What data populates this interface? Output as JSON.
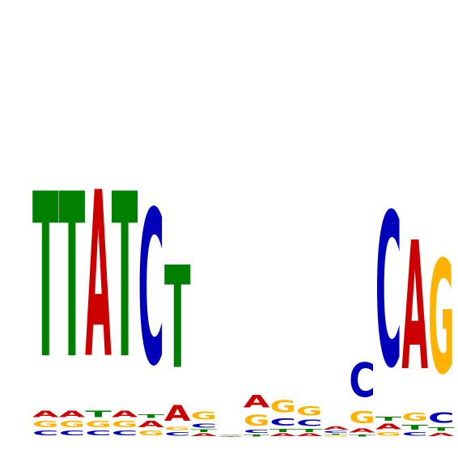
{
  "colors": {
    "A": "#cc0000",
    "C": "#0000bb",
    "G": "#ffb300",
    "T": "#008000"
  },
  "logo": {
    "positions": [
      [
        [
          "C",
          0.08
        ],
        [
          "G",
          0.1
        ],
        [
          "A",
          0.1
        ],
        [
          "T",
          2.7
        ]
      ],
      [
        [
          "C",
          0.08
        ],
        [
          "G",
          0.1
        ],
        [
          "A",
          0.1
        ],
        [
          "T",
          2.7
        ]
      ],
      [
        [
          "C",
          0.08
        ],
        [
          "G",
          0.1
        ],
        [
          "T",
          0.1
        ],
        [
          "A",
          2.72
        ]
      ],
      [
        [
          "C",
          0.08
        ],
        [
          "G",
          0.1
        ],
        [
          "A",
          0.1
        ],
        [
          "T",
          2.7
        ]
      ],
      [
        [
          "G",
          0.08
        ],
        [
          "A",
          0.1
        ],
        [
          "T",
          0.06
        ],
        [
          "C",
          2.53
        ]
      ],
      [
        [
          "C",
          0.06
        ],
        [
          "G",
          0.05
        ],
        [
          "A",
          0.26
        ],
        [
          "T",
          1.68
        ]
      ],
      [
        [
          "A",
          0.04
        ],
        [
          "T",
          0.04
        ],
        [
          "C",
          0.07
        ],
        [
          "G",
          0.13
        ]
      ],
      [
        [
          "C",
          0.005
        ],
        [
          "T",
          0.005
        ],
        [
          "G",
          0.005
        ],
        [
          "A",
          0.01
        ]
      ],
      [
        [
          "T",
          0.03
        ],
        [
          "C",
          0.05
        ],
        [
          "G",
          0.18
        ],
        [
          "A",
          0.21
        ]
      ],
      [
        [
          "A",
          0.04
        ],
        [
          "T",
          0.05
        ],
        [
          "C",
          0.12
        ],
        [
          "G",
          0.2
        ]
      ],
      [
        [
          "A",
          0.04
        ],
        [
          "T",
          0.05
        ],
        [
          "C",
          0.1
        ],
        [
          "G",
          0.15
        ]
      ],
      [
        [
          "G",
          0.015
        ],
        [
          "T",
          0.02
        ],
        [
          "C",
          0.03
        ],
        [
          "A",
          0.05
        ]
      ],
      [
        [
          "T",
          0.03
        ],
        [
          "A",
          0.07
        ],
        [
          "G",
          0.2
        ],
        [
          "C",
          0.56
        ]
      ],
      [
        [
          "G",
          0.06
        ],
        [
          "A",
          0.09
        ],
        [
          "T",
          0.07
        ],
        [
          "C",
          2.52
        ]
      ],
      [
        [
          "C",
          0.06
        ],
        [
          "T",
          0.08
        ],
        [
          "G",
          0.13
        ],
        [
          "A",
          2.11
        ]
      ],
      [
        [
          "A",
          0.05
        ],
        [
          "T",
          0.06
        ],
        [
          "C",
          0.17
        ],
        [
          "G",
          1.86
        ]
      ]
    ]
  }
}
